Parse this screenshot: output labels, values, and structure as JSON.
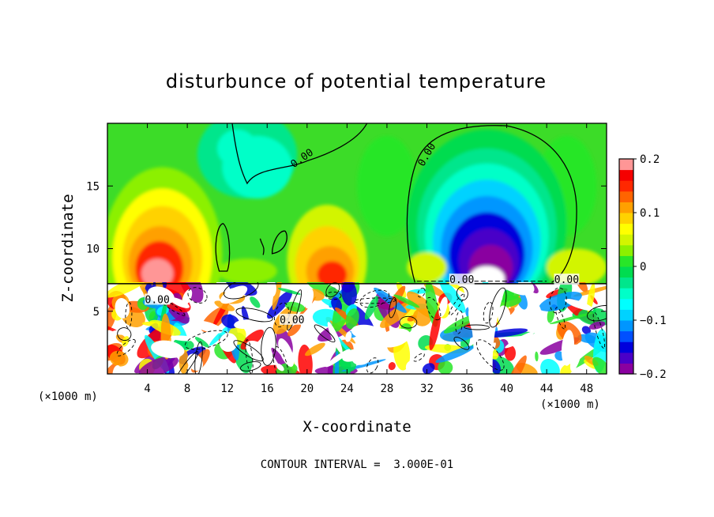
{
  "chart_data": {
    "type": "heatmap",
    "title": "disturbunce of potential temperature",
    "xlabel": "X-coordinate",
    "ylabel": "Z-coordinate",
    "x_unit_left": "(×1000 m)",
    "x_unit_right": "(×1000 m)",
    "x_ticks": [
      "4",
      "8",
      "12",
      "16",
      "20",
      "24",
      "28",
      "32",
      "36",
      "40",
      "44",
      "48"
    ],
    "x_tick_values": [
      4,
      8,
      12,
      16,
      20,
      24,
      28,
      32,
      36,
      40,
      44,
      48
    ],
    "y_ticks": [
      "5",
      "10",
      "15"
    ],
    "y_tick_values": [
      5,
      10,
      15
    ],
    "xlim": [
      0,
      50
    ],
    "ylim": [
      0,
      20
    ],
    "colorbar": {
      "ticks": [
        "0.2",
        "0.1",
        "0",
        "−0.1",
        "−0.2"
      ],
      "tick_values": [
        0.2,
        0.1,
        0,
        -0.1,
        -0.2
      ],
      "range": [
        -0.2,
        0.2
      ],
      "colors": [
        "#8a00a0",
        "#4a00c8",
        "#0000dc",
        "#0050ff",
        "#0096ff",
        "#00d2ff",
        "#00ffff",
        "#00ffc8",
        "#00e68c",
        "#00dc50",
        "#28e628",
        "#8cf000",
        "#d2f500",
        "#ffff00",
        "#ffd200",
        "#ffa000",
        "#ff6400",
        "#ff2800",
        "#f50000",
        "#ff9696"
      ]
    },
    "contour_labels": [
      "0.00",
      "0.00",
      "0.00",
      "0.00",
      "0.00",
      "0.00"
    ],
    "contour_interval_text": "CONTOUR INTERVAL =  3.000E-01",
    "fields": {
      "upper": [
        {
          "name": "background",
          "value": 0.0
        },
        {
          "name": "warm-left-column",
          "x": 5.5,
          "z": 10,
          "value": 0.18
        },
        {
          "name": "warm-mid-column",
          "x": 22,
          "z": 10,
          "value": 0.14
        },
        {
          "name": "cold-anomaly",
          "x": 38,
          "z": 10,
          "value": -0.25
        },
        {
          "name": "cool-upper-left",
          "x": 14,
          "z": 17,
          "value": -0.03
        }
      ],
      "lower_layer_top_z": 7.2
    }
  },
  "footer": {
    "contour_interval": "CONTOUR INTERVAL =  3.000E-01"
  }
}
